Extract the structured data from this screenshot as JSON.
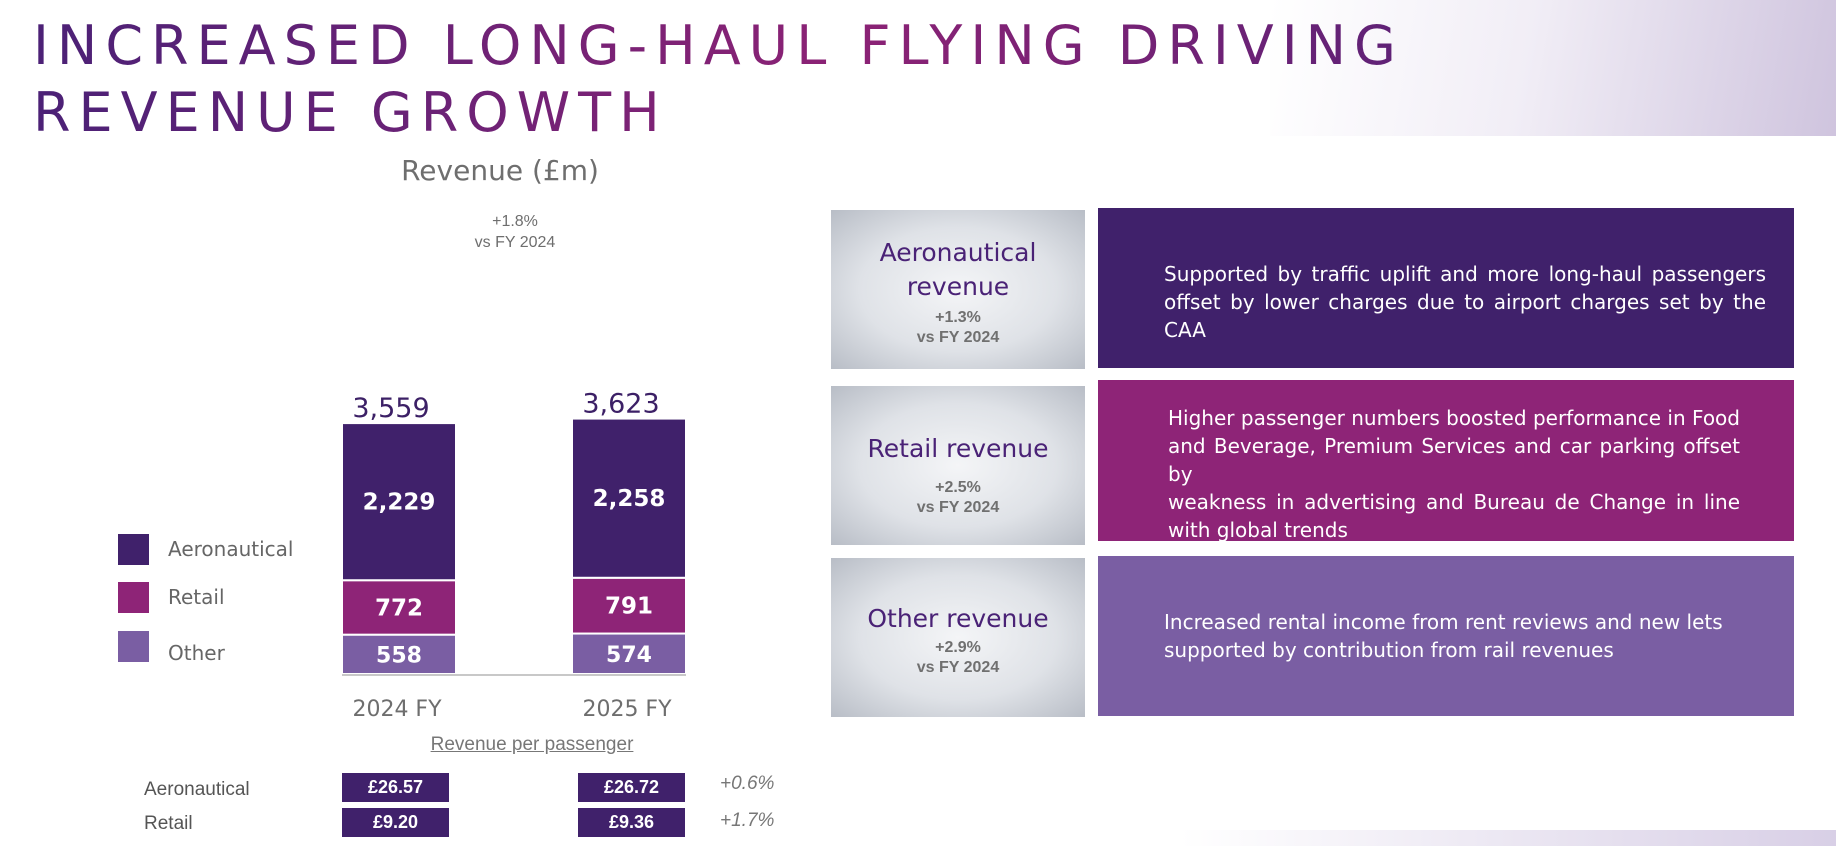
{
  "title": "INCREASED LONG-HAUL FLYING DRIVING REVENUE GROWTH",
  "chart_data": {
    "type": "bar",
    "stacked": true,
    "title": "Revenue (£m)",
    "categories": [
      "2024 FY",
      "2025 FY"
    ],
    "series": [
      {
        "name": "Aeronautical",
        "values": [
          2229,
          2258
        ],
        "color": "#40216b"
      },
      {
        "name": "Retail",
        "values": [
          772,
          791
        ],
        "color": "#8e2477"
      },
      {
        "name": "Other",
        "values": [
          558,
          574
        ],
        "color": "#7a5ea3"
      }
    ],
    "totals": [
      3559,
      3623
    ],
    "total_labels": [
      "3,559",
      "3,623"
    ],
    "value_labels": [
      [
        "2,229",
        "772",
        "558"
      ],
      [
        "2,258",
        "791",
        "574"
      ]
    ],
    "growth_note": [
      "+1.8%",
      "vs FY 2024"
    ],
    "legend_position": "left"
  },
  "legend": [
    "Aeronautical",
    "Retail",
    "Other"
  ],
  "revenue_per_passenger": {
    "title": "Revenue per passenger",
    "rows": [
      {
        "label": "Aeronautical",
        "values": [
          "£26.57",
          "£26.72"
        ],
        "change": "+0.6%"
      },
      {
        "label": "Retail",
        "values": [
          "£9.20",
          "£9.36"
        ],
        "change": "+1.7%"
      }
    ]
  },
  "cards": [
    {
      "name": [
        "Aeronautical",
        "revenue"
      ],
      "change": "+1.3%",
      "vs": "vs FY 2024",
      "color": "#40216b",
      "lines": [
        "Supported by traffic uplift and more long-haul passengers",
        "offset by lower charges due to airport charges set by the CAA"
      ]
    },
    {
      "name": [
        "Retail revenue"
      ],
      "change": "+2.5%",
      "vs": "vs FY 2024",
      "color": "#8e2477",
      "lines": [
        "Higher passenger numbers boosted performance in Food",
        "and Beverage, Premium Services and car parking offset by",
        "weakness in advertising and Bureau de Change in line",
        "with global trends"
      ]
    },
    {
      "name": [
        "Other revenue"
      ],
      "change": "+2.9%",
      "vs": "vs FY 2024",
      "color": "#7a5ea3",
      "lines": [
        "Increased rental income from rent reviews and new lets",
        "supported by contribution from rail revenues"
      ]
    }
  ]
}
